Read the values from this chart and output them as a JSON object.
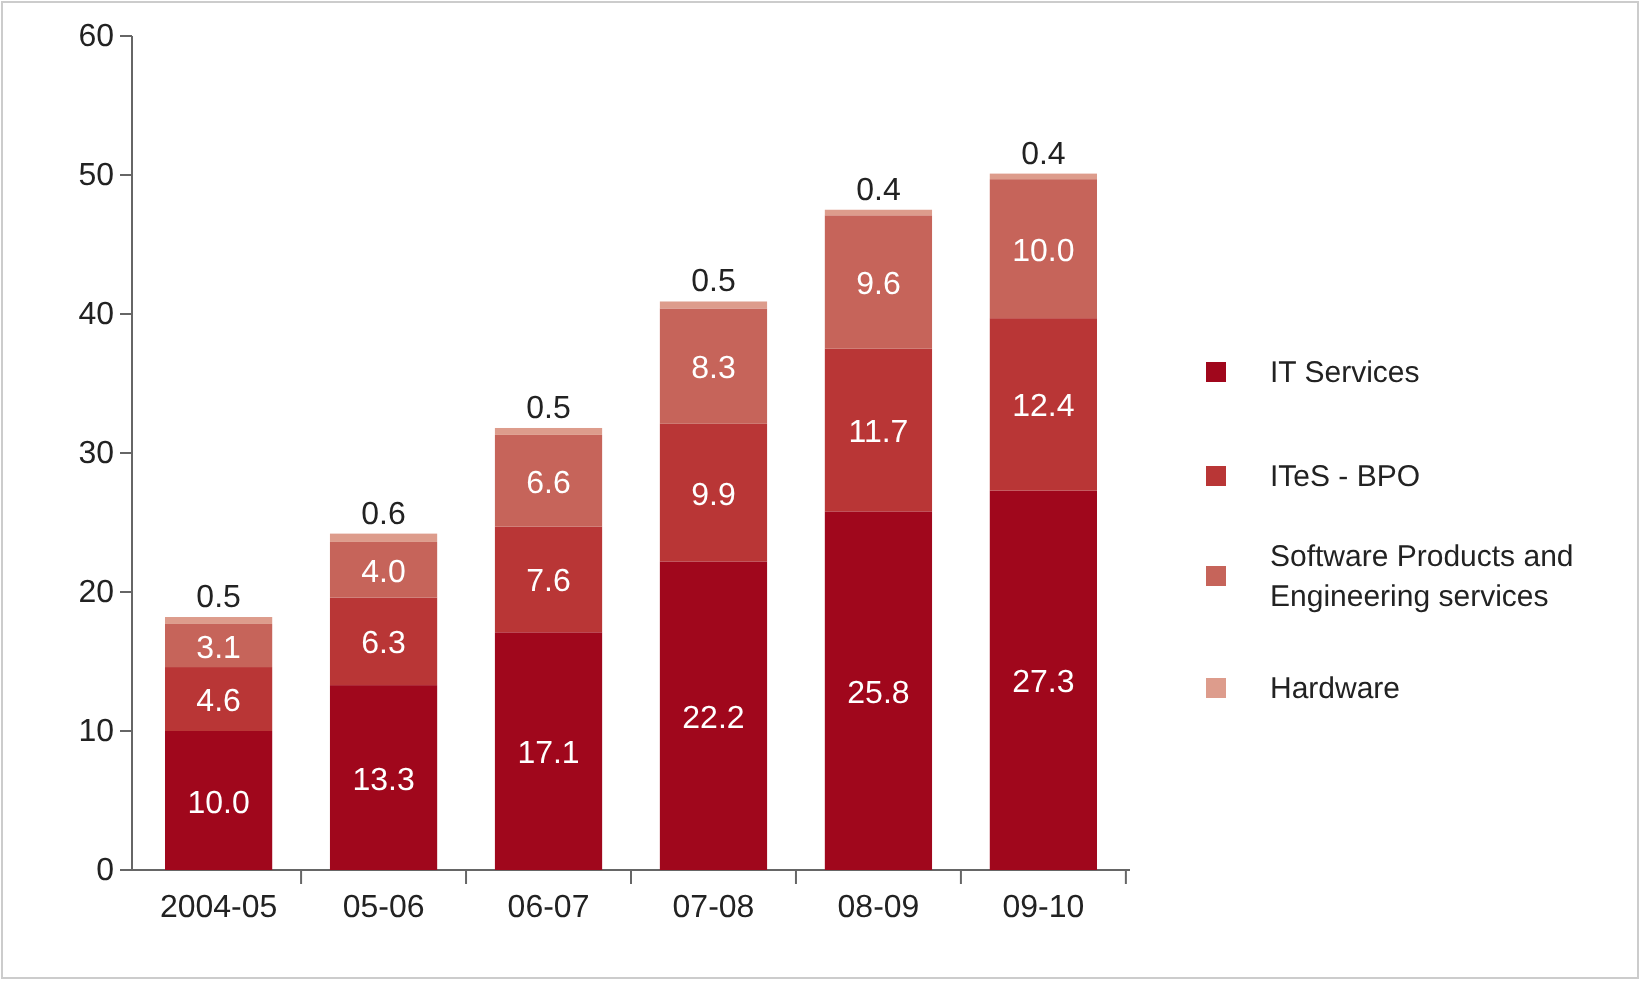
{
  "chart_data": {
    "type": "bar",
    "stacked": true,
    "categories": [
      "2004-05",
      "05-06",
      "06-07",
      "07-08",
      "08-09",
      "09-10"
    ],
    "series": [
      {
        "name": "IT Services",
        "color": "#a0071c",
        "values": [
          10.0,
          13.3,
          17.1,
          22.2,
          25.8,
          27.3
        ],
        "value_labels": [
          "10.0",
          "13.3",
          "17.1",
          "22.2",
          "25.8",
          "27.3"
        ]
      },
      {
        "name": "ITeS - BPO",
        "color": "#b93636",
        "values": [
          4.6,
          6.3,
          7.6,
          9.9,
          11.7,
          12.4
        ],
        "value_labels": [
          "4.6",
          "6.3",
          "7.6",
          "9.9",
          "11.7",
          "12.4"
        ]
      },
      {
        "name": "Software Products and Engineering services",
        "color": "#c6645a",
        "values": [
          3.1,
          4.0,
          6.6,
          8.3,
          9.6,
          10.0
        ],
        "value_labels": [
          "3.1",
          "4.0",
          "6.6",
          "8.3",
          "9.6",
          "10.0"
        ]
      },
      {
        "name": "Hardware",
        "color": "#dd9c8c",
        "values": [
          0.5,
          0.6,
          0.5,
          0.5,
          0.4,
          0.4
        ],
        "value_labels": [
          "0.5",
          "0.6",
          "0.5",
          "0.5",
          "0.4",
          "0.4"
        ]
      }
    ],
    "ylim": [
      0,
      60
    ],
    "yticks": [
      0,
      10,
      20,
      30,
      40,
      50,
      60
    ],
    "legend": "right",
    "grid": false
  }
}
